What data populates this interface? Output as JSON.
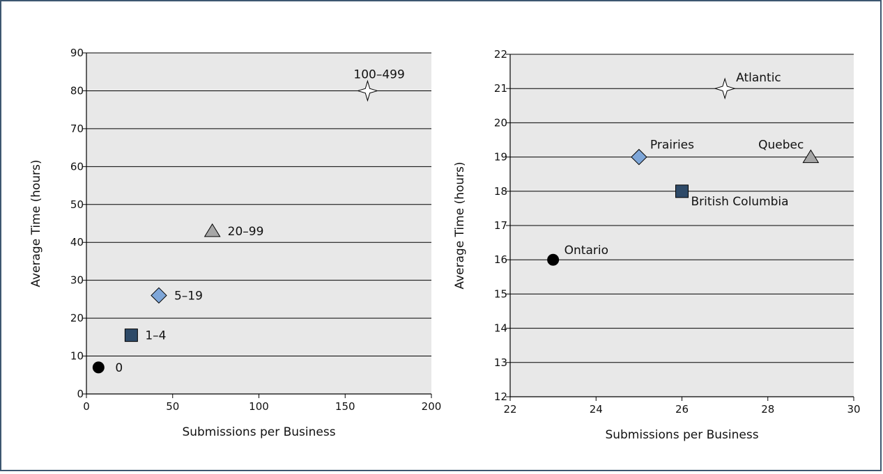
{
  "chart_data": [
    {
      "type": "scatter",
      "title": "",
      "xlabel": "Submissions per Business",
      "ylabel": "Average Time (hours)",
      "xlim": [
        0,
        200
      ],
      "ylim": [
        0,
        90
      ],
      "xticks": [
        0,
        50,
        100,
        150,
        200
      ],
      "yticks": [
        0,
        10,
        20,
        30,
        40,
        50,
        60,
        70,
        80,
        90
      ],
      "grid": "horizontal",
      "points": [
        {
          "label": "0",
          "x": 7,
          "y": 7,
          "marker": "circle",
          "color": "#000000"
        },
        {
          "label": "1–4",
          "x": 26,
          "y": 15.5,
          "marker": "square",
          "color": "#2e4a68"
        },
        {
          "label": "5–19",
          "x": 42,
          "y": 26,
          "marker": "diamond",
          "color": "#7ea6d8"
        },
        {
          "label": "20–99",
          "x": 73,
          "y": 43,
          "marker": "triangle",
          "color": "#a6a6a6"
        },
        {
          "label": "100–499",
          "x": 163,
          "y": 80,
          "marker": "star",
          "color": "#ffffff"
        }
      ]
    },
    {
      "type": "scatter",
      "title": "",
      "xlabel": "Submissions per Business",
      "ylabel": "Average Time (hours)",
      "xlim": [
        22,
        30
      ],
      "ylim": [
        12,
        22
      ],
      "xticks": [
        22,
        24,
        26,
        28,
        30
      ],
      "yticks": [
        12,
        13,
        14,
        15,
        16,
        17,
        18,
        19,
        20,
        21,
        22
      ],
      "grid": "horizontal",
      "points": [
        {
          "label": "Ontario",
          "x": 23,
          "y": 16,
          "marker": "circle",
          "color": "#000000"
        },
        {
          "label": "British Columbia",
          "x": 26,
          "y": 18,
          "marker": "square",
          "color": "#2e4a68"
        },
        {
          "label": "Prairies",
          "x": 25,
          "y": 19,
          "marker": "diamond",
          "color": "#7ea6d8"
        },
        {
          "label": "Quebec",
          "x": 29,
          "y": 19,
          "marker": "triangle",
          "color": "#a6a6a6"
        },
        {
          "label": "Atlantic",
          "x": 27,
          "y": 21,
          "marker": "star",
          "color": "#ffffff"
        }
      ]
    }
  ]
}
